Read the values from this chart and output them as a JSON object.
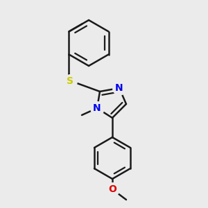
{
  "bg_color": "#ebebeb",
  "bond_color": "#1a1a1a",
  "bond_width": 1.8,
  "dbo": 0.06,
  "S_color": "#cccc00",
  "N_color": "#0000ee",
  "O_color": "#dd0000",
  "font_size": 10,
  "fig_width": 3.0,
  "fig_height": 3.0,
  "dpi": 100,
  "xlim": [
    0.0,
    3.0
  ],
  "ylim": [
    0.0,
    3.0
  ]
}
